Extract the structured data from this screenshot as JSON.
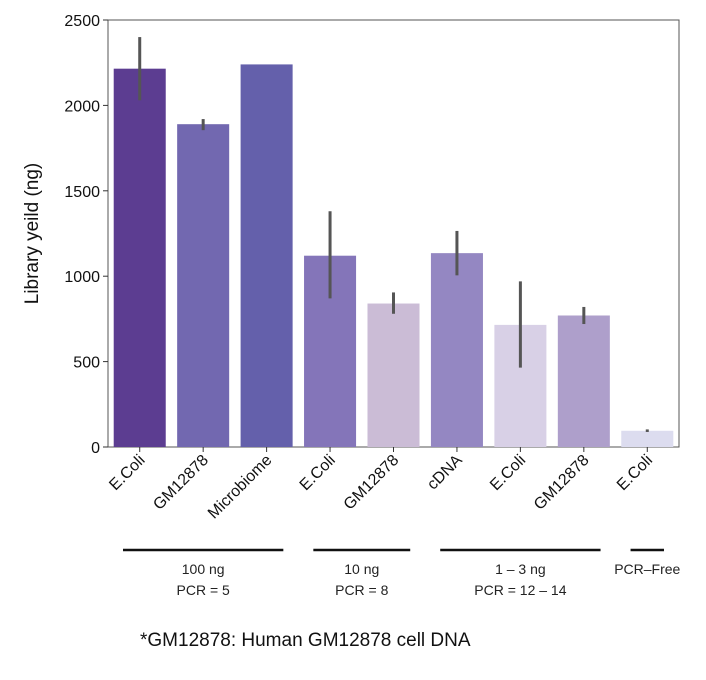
{
  "chart_data": {
    "type": "bar",
    "title": "",
    "xlabel": "",
    "ylabel": "Library yeild (ng)",
    "ylim": [
      0,
      2500
    ],
    "yticks": [
      0,
      500,
      1000,
      1500,
      2000,
      2500
    ],
    "grid": false,
    "bars": [
      {
        "label": "E.Coli",
        "value": 2215,
        "err_low": 2030,
        "err_high": 2400,
        "color": "#5c3d91"
      },
      {
        "label": "GM12878",
        "value": 1890,
        "err_low": 1855,
        "err_high": 1920,
        "color": "#7268b0"
      },
      {
        "label": "Microbiome",
        "value": 2240,
        "err_low": null,
        "err_high": null,
        "color": "#6460ab"
      },
      {
        "label": "E.Coli",
        "value": 1120,
        "err_low": 870,
        "err_high": 1380,
        "color": "#8475b9"
      },
      {
        "label": "GM12878",
        "value": 840,
        "err_low": 780,
        "err_high": 905,
        "color": "#cbbcd6"
      },
      {
        "label": "cDNA",
        "value": 1135,
        "err_low": 1005,
        "err_high": 1265,
        "color": "#9487c2"
      },
      {
        "label": "E.Coli",
        "value": 715,
        "err_low": 465,
        "err_high": 970,
        "color": "#d8d0e6"
      },
      {
        "label": "GM12878",
        "value": 770,
        "err_low": 720,
        "err_high": 820,
        "color": "#ae9fcb"
      },
      {
        "label": "E.Coli",
        "value": 95,
        "err_low": 88,
        "err_high": 103,
        "color": "#dcdcef"
      }
    ],
    "groups": [
      {
        "line1": "100 ng",
        "line2": "PCR = 5",
        "start": 0,
        "end": 2
      },
      {
        "line1": "10 ng",
        "line2": "PCR = 8",
        "start": 3,
        "end": 4
      },
      {
        "line1": "1 – 3 ng",
        "line2": "PCR = 12 – 14",
        "start": 5,
        "end": 7
      },
      {
        "line1": "PCR–Free",
        "line2": "",
        "start": 8,
        "end": 8
      }
    ]
  },
  "footnote": "*GM12878: Human GM12878 cell DNA"
}
